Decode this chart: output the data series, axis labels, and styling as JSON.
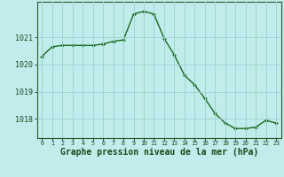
{
  "x": [
    0,
    1,
    2,
    3,
    4,
    5,
    6,
    7,
    8,
    9,
    10,
    11,
    12,
    13,
    14,
    15,
    16,
    17,
    18,
    19,
    20,
    21,
    22,
    23
  ],
  "y": [
    1020.3,
    1020.65,
    1020.7,
    1020.7,
    1020.7,
    1020.7,
    1020.75,
    1020.85,
    1020.9,
    1021.85,
    1021.95,
    1021.85,
    1020.95,
    1020.35,
    1019.6,
    1019.25,
    1018.75,
    1018.2,
    1017.85,
    1017.65,
    1017.65,
    1017.7,
    1017.95,
    1017.85
  ],
  "line_color": "#1a6b1a",
  "marker": "D",
  "marker_size": 2.0,
  "bg_color": "#c0ecec",
  "grid_color": "#a0d4d4",
  "title": "Graphe pression niveau de la mer (hPa)",
  "title_fontsize": 7.0,
  "ytick_labels": [
    "1018",
    "1019",
    "1020",
    "1021"
  ],
  "ytick_values": [
    1018,
    1019,
    1020,
    1021
  ],
  "xtick_labels": [
    "0",
    "1",
    "2",
    "3",
    "4",
    "5",
    "6",
    "7",
    "8",
    "9",
    "10",
    "11",
    "12",
    "13",
    "14",
    "15",
    "16",
    "17",
    "18",
    "19",
    "20",
    "21",
    "22",
    "23"
  ],
  "ylim": [
    1017.3,
    1022.3
  ],
  "xlim": [
    -0.5,
    23.5
  ]
}
